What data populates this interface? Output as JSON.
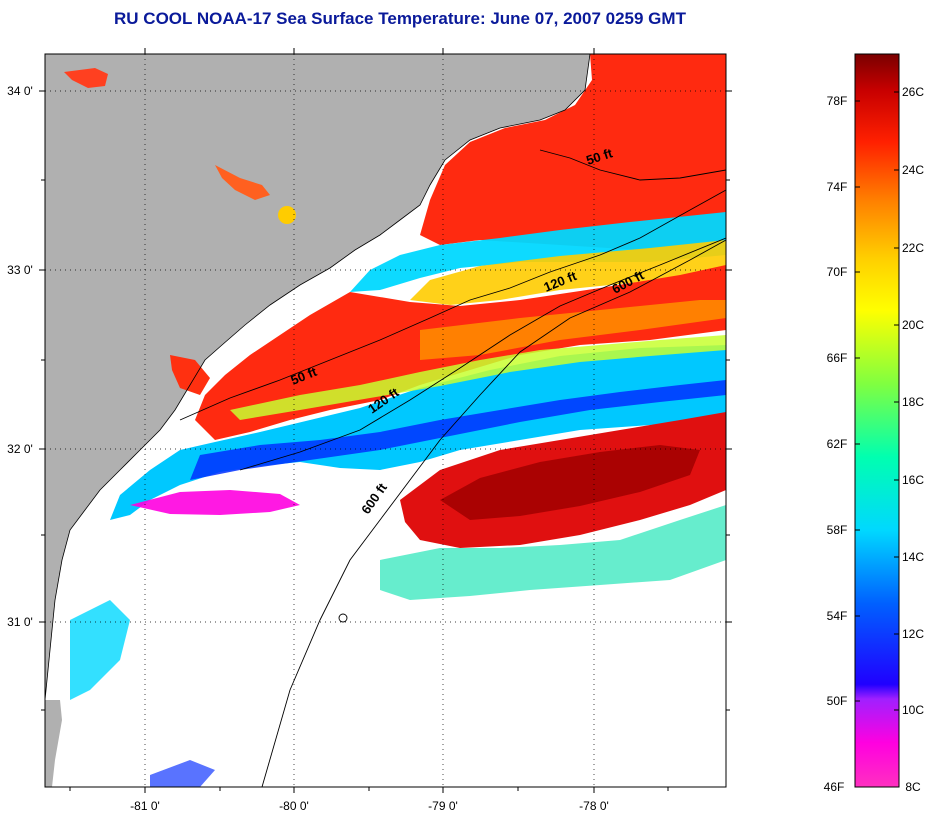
{
  "title": "RU COOL  NOAA-17  Sea Surface Temperature:  June 07, 2007 0259 GMT",
  "map": {
    "lat_labels": [
      "34 0'",
      "33 0'",
      "32 0'",
      "31 0'"
    ],
    "lon_labels": [
      "-81 0'",
      "-80 0'",
      "-79 0'",
      "-78 0'"
    ],
    "isobath_labels": [
      "50 ft",
      "120 ft",
      "600 ft",
      "50 ft",
      "120 ft",
      "600 ft"
    ]
  },
  "colorbar": {
    "fahrenheit_labels": [
      "78F",
      "74F",
      "70F",
      "66F",
      "62F",
      "58F",
      "54F",
      "50F",
      "46F"
    ],
    "celsius_labels": [
      "26C",
      "24C",
      "22C",
      "20C",
      "18C",
      "16C",
      "14C",
      "12C",
      "10C",
      "8C"
    ],
    "colors": [
      "#8b0000",
      "#d01010",
      "#ff3a00",
      "#ff8c00",
      "#ffdd00",
      "#ffff00",
      "#9cff3c",
      "#00ffcc",
      "#00e0ff",
      "#0070ff",
      "#0000ff",
      "#5a00c8",
      "#b000ff",
      "#ff00c8",
      "#ff3ac8"
    ]
  },
  "land_color": "#b0b0b0",
  "cloud_color": "#ffffff"
}
